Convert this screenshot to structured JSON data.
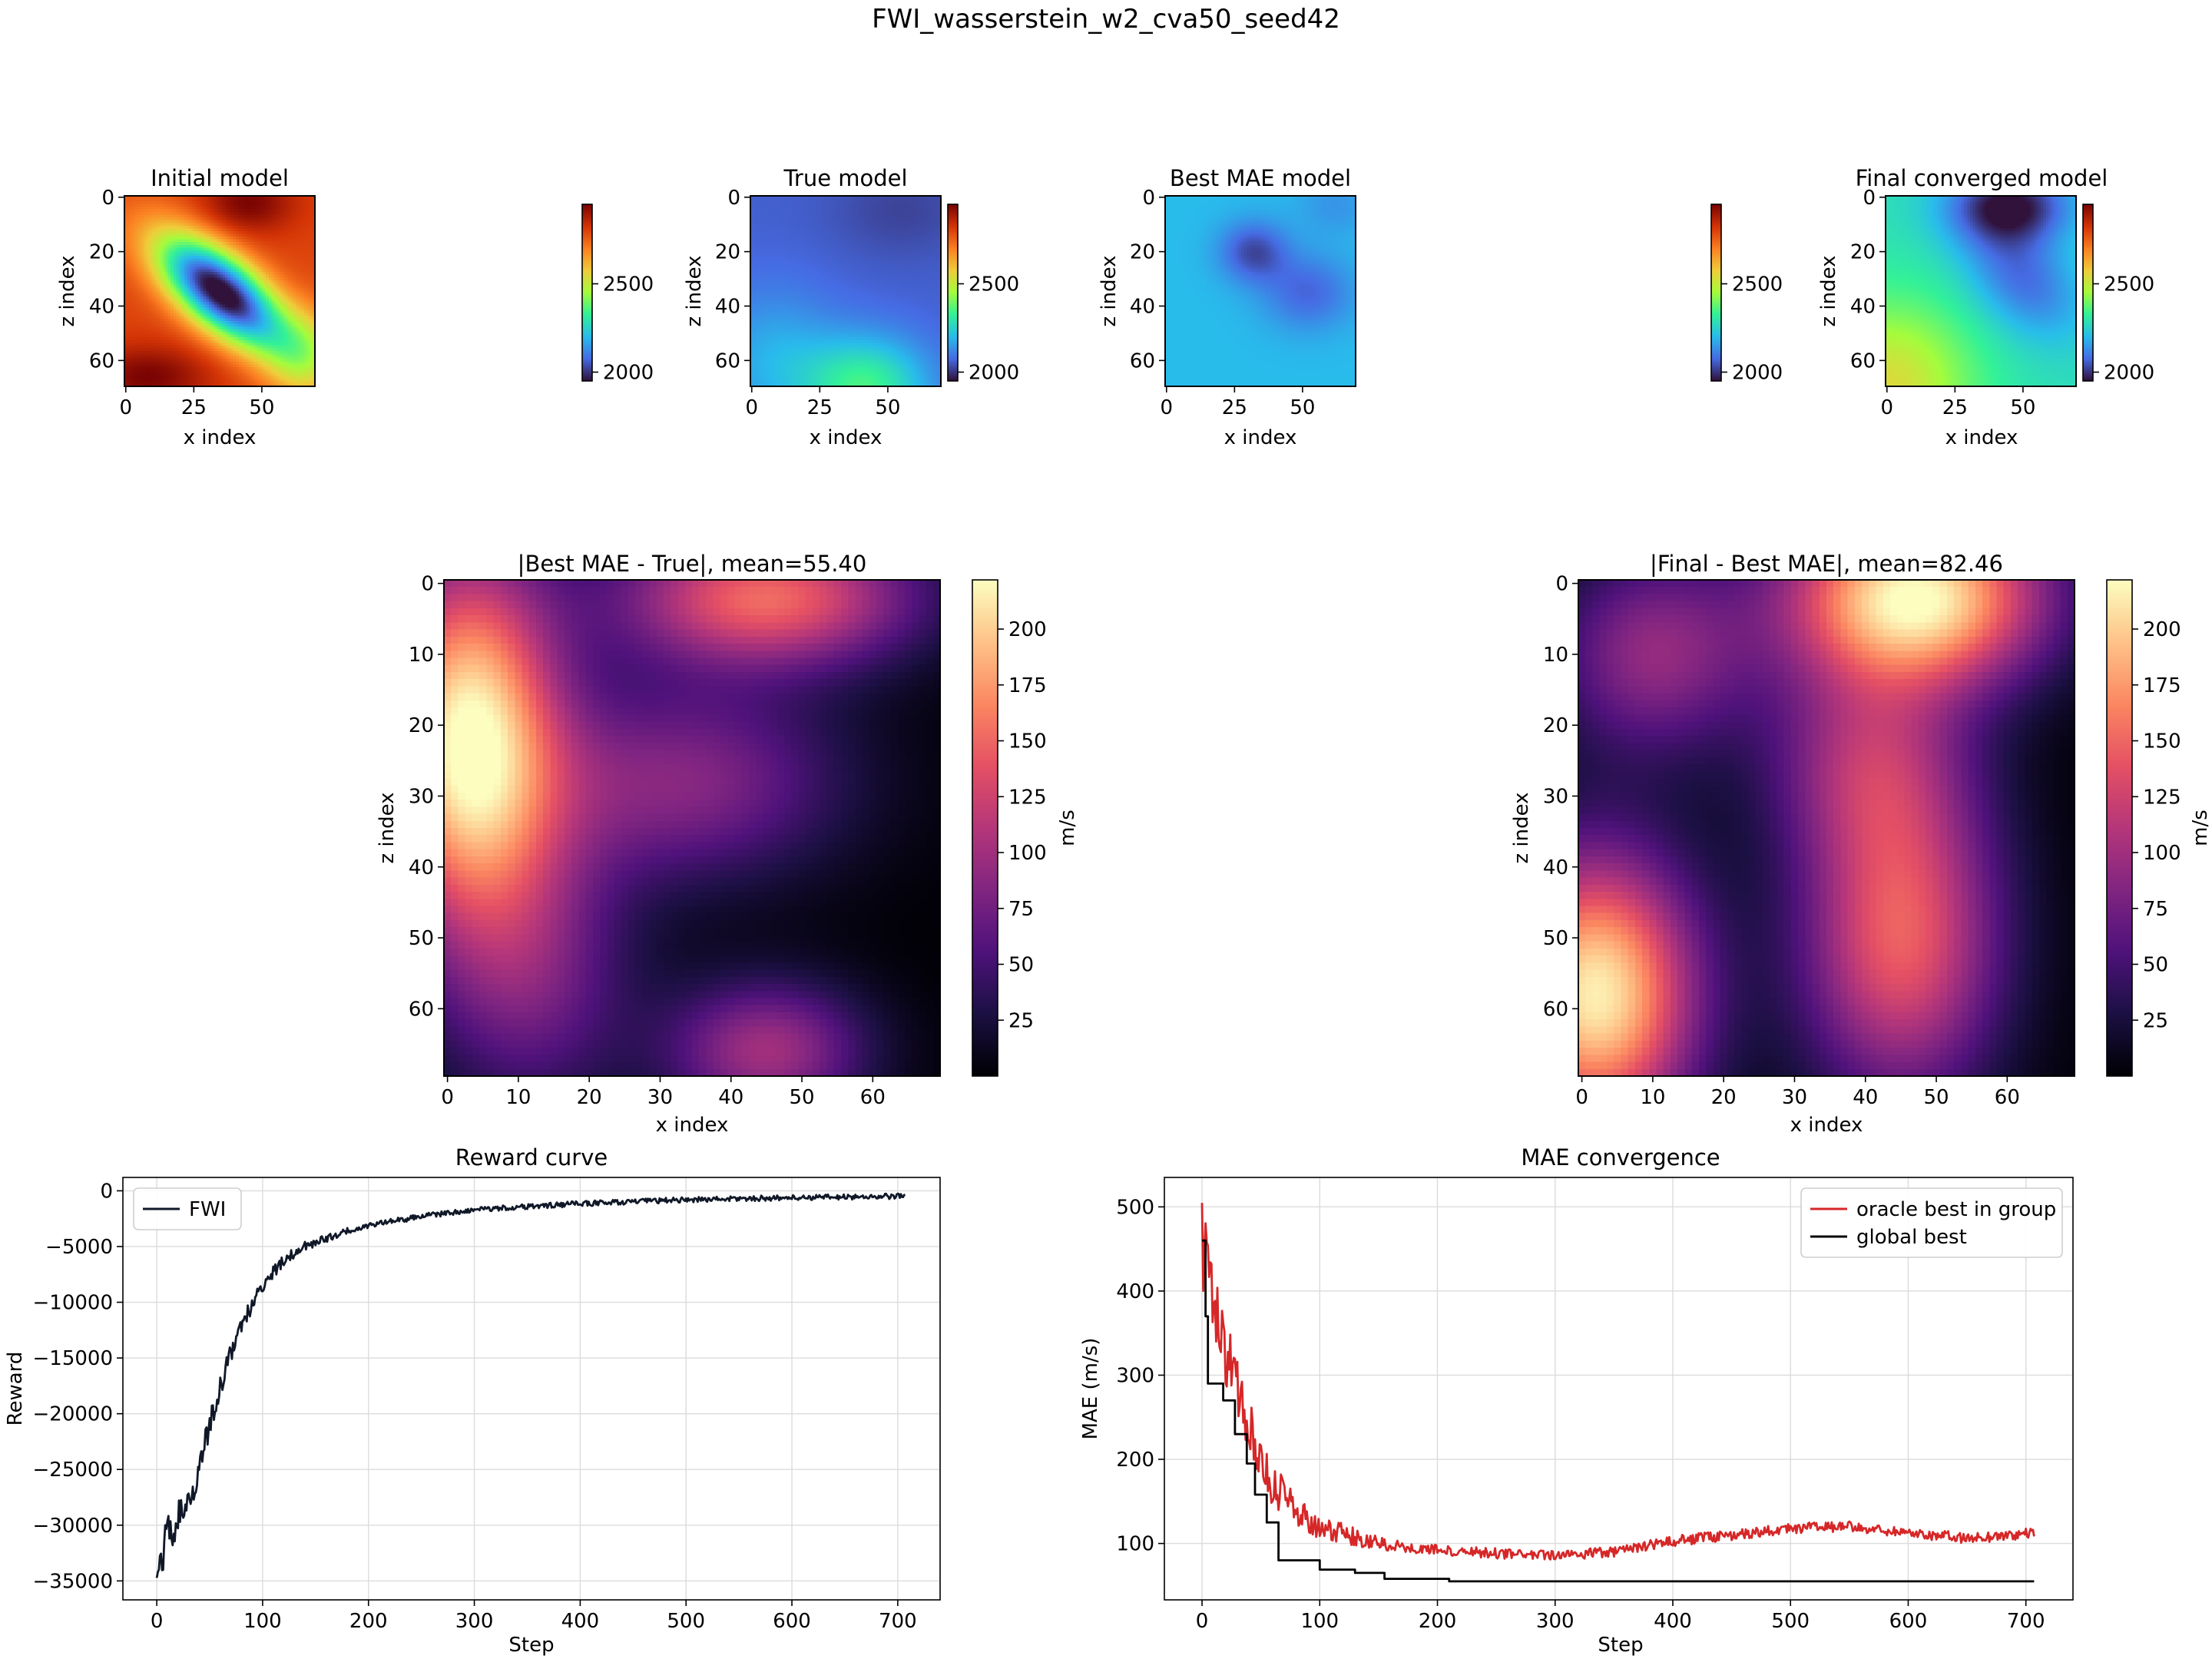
{
  "figure_title": "FWI_wasserstein_w2_cva50_seed42",
  "colors": {
    "fwi": "#101828",
    "oracle": "#d62728",
    "global": "#000000",
    "grid": "#dcdcdc"
  },
  "chart_data": [
    {
      "type": "heatmap",
      "id": "initial",
      "title": "Initial model",
      "colormap": "turbo",
      "xlabel": "x index",
      "ylabel": "z index",
      "grid_size": [
        70,
        70
      ],
      "xticks": [
        "0",
        "25",
        "50"
      ],
      "yticks": [
        "0",
        "20",
        "40",
        "60"
      ],
      "colorbar_range": [
        1950,
        2950
      ],
      "colorbar_ticks": [
        "2000",
        "2500"
      ],
      "field": {
        "base": 2800,
        "blobs": [
          {
            "cx": 35,
            "cy": 35,
            "rx": 20,
            "ry": 9,
            "angle": 40,
            "amp": -900
          },
          {
            "cx": 45,
            "cy": 2,
            "rx": 12,
            "ry": 8,
            "angle": 0,
            "amp": 150
          },
          {
            "cx": 8,
            "cy": 66,
            "rx": 16,
            "ry": 8,
            "angle": 0,
            "amp": 150
          },
          {
            "cx": 66,
            "cy": 58,
            "rx": 10,
            "ry": 12,
            "angle": 0,
            "amp": -250
          }
        ]
      }
    },
    {
      "type": "heatmap",
      "id": "true",
      "title": "True model",
      "colormap": "turbo",
      "xlabel": "x index",
      "ylabel": "z index",
      "grid_size": [
        70,
        70
      ],
      "xticks": [
        "0",
        "25",
        "50"
      ],
      "yticks": [
        "0",
        "20",
        "40",
        "60"
      ],
      "colorbar_range": [
        1950,
        2950
      ],
      "colorbar_ticks": [
        "2000",
        "2500"
      ],
      "field": {
        "base": 2060,
        "blobs": [
          {
            "cx": 42,
            "cy": 70,
            "rx": 16,
            "ry": 13,
            "angle": 0,
            "amp": 280
          },
          {
            "cx": 8,
            "cy": 60,
            "rx": 16,
            "ry": 18,
            "angle": 0,
            "amp": 120
          },
          {
            "cx": 55,
            "cy": 5,
            "rx": 18,
            "ry": 12,
            "angle": 0,
            "amp": -40
          }
        ]
      }
    },
    {
      "type": "heatmap",
      "id": "best",
      "title": "Best MAE model",
      "colormap": "turbo",
      "xlabel": "x index",
      "ylabel": "z index",
      "grid_size": [
        70,
        70
      ],
      "xticks": [
        "0",
        "25",
        "50"
      ],
      "yticks": [
        "0",
        "20",
        "40",
        "60"
      ],
      "colorbar_range": [
        1950,
        2950
      ],
      "colorbar_ticks": [
        "2000",
        "2500"
      ],
      "field": {
        "base": 2200,
        "blobs": [
          {
            "cx": 32,
            "cy": 20,
            "rx": 9,
            "ry": 8,
            "angle": 0,
            "amp": -170
          },
          {
            "cx": 52,
            "cy": 35,
            "rx": 12,
            "ry": 10,
            "angle": 0,
            "amp": -130
          },
          {
            "cx": 62,
            "cy": 3,
            "rx": 10,
            "ry": 8,
            "angle": 0,
            "amp": -60
          }
        ]
      }
    },
    {
      "type": "heatmap",
      "id": "final",
      "title": "Final converged model",
      "colormap": "turbo",
      "xlabel": "x index",
      "ylabel": "z index",
      "grid_size": [
        70,
        70
      ],
      "xticks": [
        "0",
        "25",
        "50"
      ],
      "yticks": [
        "0",
        "20",
        "40",
        "60"
      ],
      "colorbar_range": [
        1950,
        2950
      ],
      "colorbar_ticks": [
        "2000",
        "2500"
      ],
      "field": {
        "base": 2280,
        "blobs": [
          {
            "cx": 45,
            "cy": 3,
            "rx": 16,
            "ry": 10,
            "angle": 0,
            "amp": -330
          },
          {
            "cx": 50,
            "cy": 30,
            "rx": 18,
            "ry": 12,
            "angle": 45,
            "amp": -200
          },
          {
            "cx": 0,
            "cy": 70,
            "rx": 22,
            "ry": 22,
            "angle": 0,
            "amp": 260
          }
        ]
      }
    },
    {
      "type": "heatmap",
      "id": "diff1",
      "title": "|Best MAE - True|, mean=55.40",
      "colormap": "magma",
      "xlabel": "x index",
      "ylabel": "z index",
      "grid_size": [
        70,
        70
      ],
      "xticks": [
        "0",
        "10",
        "20",
        "30",
        "40",
        "50",
        "60"
      ],
      "yticks": [
        "0",
        "10",
        "20",
        "30",
        "40",
        "50",
        "60"
      ],
      "colorbar_range": [
        0,
        222
      ],
      "colorbar_ticks": [
        "25",
        "50",
        "75",
        "100",
        "125",
        "150",
        "175",
        "200"
      ],
      "colorbar_label": "m/s",
      "field": {
        "base": 0,
        "blobs": [
          {
            "cx": 3,
            "cy": 22,
            "rx": 9,
            "ry": 18,
            "angle": 0,
            "amp": 220
          },
          {
            "cx": 45,
            "cy": 2,
            "rx": 15,
            "ry": 7,
            "angle": 0,
            "amp": 150
          },
          {
            "cx": 33,
            "cy": 28,
            "rx": 16,
            "ry": 10,
            "angle": 0,
            "amp": 85
          },
          {
            "cx": 45,
            "cy": 66,
            "rx": 10,
            "ry": 7,
            "angle": 0,
            "amp": 100
          },
          {
            "cx": 12,
            "cy": 55,
            "rx": 10,
            "ry": 14,
            "angle": 0,
            "amp": 70
          }
        ]
      }
    },
    {
      "type": "heatmap",
      "id": "diff2",
      "title": "|Final - Best MAE|, mean=82.46",
      "colormap": "magma",
      "xlabel": "x index",
      "ylabel": "z index",
      "grid_size": [
        70,
        70
      ],
      "xticks": [
        "0",
        "10",
        "20",
        "30",
        "40",
        "50",
        "60"
      ],
      "yticks": [
        "0",
        "10",
        "20",
        "30",
        "40",
        "50",
        "60"
      ],
      "colorbar_range": [
        0,
        222
      ],
      "colorbar_ticks": [
        "25",
        "50",
        "75",
        "100",
        "125",
        "150",
        "175",
        "200"
      ],
      "colorbar_label": "m/s",
      "field": {
        "base": 0,
        "blobs": [
          {
            "cx": 47,
            "cy": 2,
            "rx": 13,
            "ry": 9,
            "angle": 0,
            "amp": 222
          },
          {
            "cx": 2,
            "cy": 58,
            "rx": 10,
            "ry": 14,
            "angle": 0,
            "amp": 215
          },
          {
            "cx": 45,
            "cy": 50,
            "rx": 10,
            "ry": 16,
            "angle": 0,
            "amp": 145
          },
          {
            "cx": 10,
            "cy": 10,
            "rx": 10,
            "ry": 10,
            "angle": 0,
            "amp": 90
          },
          {
            "cx": 40,
            "cy": 25,
            "rx": 10,
            "ry": 10,
            "angle": 0,
            "amp": 80
          }
        ]
      }
    },
    {
      "type": "line",
      "id": "reward",
      "title": "Reward curve",
      "xlabel": "Step",
      "ylabel": "Reward",
      "xlim": [
        -32,
        740
      ],
      "ylim": [
        -36700,
        1200
      ],
      "xticks": [
        0,
        100,
        200,
        300,
        400,
        500,
        600,
        700
      ],
      "yticks": [
        0,
        -5000,
        -10000,
        -15000,
        -20000,
        -25000,
        -30000,
        -35000
      ],
      "grid": true,
      "legend": "top-left",
      "series": [
        {
          "name": "FWI",
          "color": "#101828",
          "x_range": [
            0,
            707
          ],
          "points": [
            [
              0,
              -34000
            ],
            [
              10,
              -31000
            ],
            [
              20,
              -29500
            ],
            [
              30,
              -28000
            ],
            [
              40,
              -25000
            ],
            [
              50,
              -21000
            ],
            [
              60,
              -17500
            ],
            [
              70,
              -14500
            ],
            [
              80,
              -12000
            ],
            [
              100,
              -8500
            ],
            [
              120,
              -6200
            ],
            [
              140,
              -5000
            ],
            [
              160,
              -4300
            ],
            [
              180,
              -3600
            ],
            [
              200,
              -3100
            ],
            [
              250,
              -2300
            ],
            [
              300,
              -1700
            ],
            [
              400,
              -1150
            ],
            [
              500,
              -800
            ],
            [
              600,
              -620
            ],
            [
              707,
              -480
            ]
          ],
          "noise": 500
        }
      ]
    },
    {
      "type": "line",
      "id": "mae",
      "title": "MAE convergence",
      "xlabel": "Step",
      "ylabel": "MAE (m/s)",
      "xlim": [
        -32,
        740
      ],
      "ylim": [
        33,
        535
      ],
      "xticks": [
        0,
        100,
        200,
        300,
        400,
        500,
        600,
        700
      ],
      "yticks": [
        100,
        200,
        300,
        400,
        500
      ],
      "grid": true,
      "legend": "top-right",
      "series": [
        {
          "name": "oracle best in group",
          "color": "#d62728",
          "x_range": [
            0,
            707
          ],
          "points": [
            [
              0,
              460
            ],
            [
              5,
              420
            ],
            [
              10,
              380
            ],
            [
              20,
              330
            ],
            [
              30,
              280
            ],
            [
              40,
              240
            ],
            [
              50,
              200
            ],
            [
              60,
              170
            ],
            [
              80,
              140
            ],
            [
              100,
              120
            ],
            [
              150,
              100
            ],
            [
              200,
              92
            ],
            [
              250,
              88
            ],
            [
              300,
              85
            ],
            [
              350,
              90
            ],
            [
              400,
              103
            ],
            [
              450,
              110
            ],
            [
              500,
              118
            ],
            [
              550,
              120
            ],
            [
              600,
              113
            ],
            [
              650,
              106
            ],
            [
              707,
              112
            ]
          ],
          "noise": 18
        },
        {
          "name": "global best",
          "color": "#000000",
          "steps": [
            [
              0,
              460
            ],
            [
              3,
              370
            ],
            [
              5,
              290
            ],
            [
              18,
              270
            ],
            [
              28,
              230
            ],
            [
              38,
              195
            ],
            [
              45,
              158
            ],
            [
              55,
              125
            ],
            [
              65,
              80
            ],
            [
              100,
              69
            ],
            [
              130,
              65
            ],
            [
              155,
              58
            ],
            [
              210,
              55
            ],
            [
              707,
              55
            ]
          ]
        }
      ]
    }
  ]
}
